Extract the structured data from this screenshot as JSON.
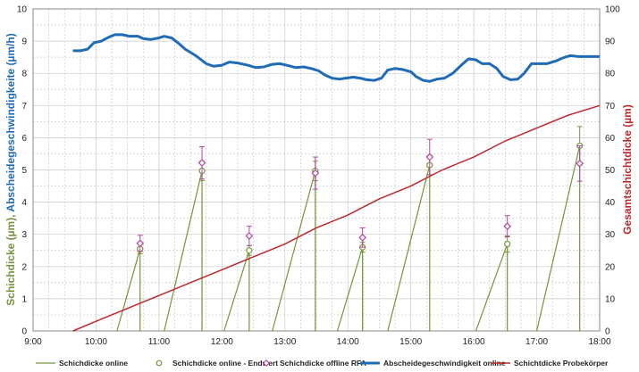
{
  "chart_data": {
    "type": "line",
    "x_range": [
      "9:00",
      "18:00"
    ],
    "x_ticks": [
      "9:00",
      "10:00",
      "11:00",
      "12:00",
      "13:00",
      "14:00",
      "15:00",
      "16:00",
      "17:00",
      "18:00"
    ],
    "y_left": {
      "label_part1": "Schichdicke (µm), ",
      "label_part2": "Abscheidegeschwindigkeite (µm/h)",
      "range": [
        0,
        10
      ],
      "ticks": [
        "0",
        "1",
        "2",
        "3",
        "4",
        "5",
        "6",
        "7",
        "8",
        "9",
        "10"
      ]
    },
    "y_right": {
      "label": "Gesamtschichtdicke (µm)",
      "range": [
        0,
        100
      ],
      "ticks": [
        "0",
        "10",
        "20",
        "30",
        "40",
        "50",
        "60",
        "70",
        "80",
        "90",
        "100"
      ]
    },
    "grid": true,
    "legend_position": "bottom",
    "colors": {
      "online": "#77933c",
      "endwert": "#77933c",
      "rfa": "#b4459e",
      "rate": "#1f6bb5",
      "probe": "#c0282d",
      "grid": "#c8c8c8",
      "left_title_part1": "#77933c",
      "left_title_part2": "#1f6bb5",
      "right_title": "#c0282d"
    },
    "series": [
      {
        "name": "Schichdicke online",
        "kind": "line",
        "color_key": "online",
        "segments": [
          [
            [
              "10:20",
              0
            ],
            [
              "10:42",
              2.55
            ],
            [
              "10:42",
              0
            ]
          ],
          [
            [
              "11:05",
              0
            ],
            [
              "11:41",
              4.97
            ],
            [
              "11:41",
              0
            ]
          ],
          [
            [
              "12:02",
              0
            ],
            [
              "12:26",
              2.5
            ],
            [
              "12:26",
              0
            ]
          ],
          [
            [
              "12:48",
              0
            ],
            [
              "13:29",
              4.97
            ],
            [
              "13:29",
              0
            ]
          ],
          [
            [
              "13:50",
              0
            ],
            [
              "14:14",
              2.6
            ],
            [
              "14:14",
              0
            ]
          ],
          [
            [
              "14:38",
              0
            ],
            [
              "15:18",
              5.15
            ],
            [
              "15:18",
              0
            ]
          ],
          [
            [
              "16:02",
              0
            ],
            [
              "16:32",
              2.7
            ],
            [
              "16:32",
              0
            ]
          ],
          [
            [
              "17:00",
              0
            ],
            [
              "17:41",
              5.75
            ],
            [
              "17:41",
              0
            ]
          ]
        ]
      },
      {
        "name": "Schichdicke online - Endwert",
        "kind": "marker-circle",
        "color_key": "endwert",
        "points": [
          {
            "t": "10:42",
            "y": 2.55,
            "err": 0.15
          },
          {
            "t": "11:41",
            "y": 4.97,
            "err": 0.3
          },
          {
            "t": "12:26",
            "y": 2.5,
            "err": 0.15
          },
          {
            "t": "13:29",
            "y": 4.97,
            "err": 0.3
          },
          {
            "t": "14:14",
            "y": 2.6,
            "err": 0.15
          },
          {
            "t": "15:18",
            "y": 5.15,
            "err": 0.3
          },
          {
            "t": "16:32",
            "y": 2.7,
            "err": 0.25
          },
          {
            "t": "17:41",
            "y": 5.75,
            "err": 0.6
          }
        ]
      },
      {
        "name": "Schichdicke offline RFA",
        "kind": "marker-diamond",
        "color_key": "rfa",
        "points": [
          {
            "t": "10:42",
            "y": 2.72,
            "err": 0.25
          },
          {
            "t": "11:41",
            "y": 5.22,
            "err": 0.5
          },
          {
            "t": "12:26",
            "y": 2.95,
            "err": 0.3
          },
          {
            "t": "13:29",
            "y": 4.9,
            "err": 0.5
          },
          {
            "t": "14:14",
            "y": 2.9,
            "err": 0.3
          },
          {
            "t": "15:18",
            "y": 5.4,
            "err": 0.55
          },
          {
            "t": "16:32",
            "y": 3.25,
            "err": 0.33
          },
          {
            "t": "17:41",
            "y": 5.2,
            "err": 0.55
          }
        ]
      },
      {
        "name": "Abscheidegeschwindigkeit online",
        "kind": "line",
        "axis": "left",
        "color_key": "rate",
        "points": [
          [
            "9:38",
            8.7
          ],
          [
            "9:45",
            8.7
          ],
          [
            "9:52",
            8.75
          ],
          [
            "9:58",
            8.95
          ],
          [
            "10:05",
            9.0
          ],
          [
            "10:12",
            9.12
          ],
          [
            "10:18",
            9.2
          ],
          [
            "10:25",
            9.2
          ],
          [
            "10:32",
            9.15
          ],
          [
            "10:40",
            9.15
          ],
          [
            "10:45",
            9.08
          ],
          [
            "10:52",
            9.05
          ],
          [
            "11:00",
            9.1
          ],
          [
            "11:05",
            9.15
          ],
          [
            "11:12",
            9.1
          ],
          [
            "11:18",
            8.95
          ],
          [
            "11:25",
            8.75
          ],
          [
            "11:35",
            8.55
          ],
          [
            "11:45",
            8.3
          ],
          [
            "11:52",
            8.22
          ],
          [
            "12:00",
            8.25
          ],
          [
            "12:07",
            8.35
          ],
          [
            "12:15",
            8.32
          ],
          [
            "12:25",
            8.25
          ],
          [
            "12:32",
            8.18
          ],
          [
            "12:40",
            8.2
          ],
          [
            "12:48",
            8.28
          ],
          [
            "12:55",
            8.3
          ],
          [
            "13:02",
            8.25
          ],
          [
            "13:10",
            8.18
          ],
          [
            "13:18",
            8.2
          ],
          [
            "13:25",
            8.15
          ],
          [
            "13:32",
            8.08
          ],
          [
            "13:38",
            7.95
          ],
          [
            "13:45",
            7.85
          ],
          [
            "13:52",
            7.82
          ],
          [
            "13:58",
            7.85
          ],
          [
            "14:05",
            7.88
          ],
          [
            "14:12",
            7.85
          ],
          [
            "14:18",
            7.8
          ],
          [
            "14:25",
            7.78
          ],
          [
            "14:32",
            7.85
          ],
          [
            "14:38",
            8.1
          ],
          [
            "14:45",
            8.15
          ],
          [
            "14:52",
            8.12
          ],
          [
            "15:00",
            8.05
          ],
          [
            "15:05",
            7.9
          ],
          [
            "15:12",
            7.78
          ],
          [
            "15:18",
            7.75
          ],
          [
            "15:25",
            7.82
          ],
          [
            "15:32",
            7.85
          ],
          [
            "15:40",
            8.0
          ],
          [
            "15:48",
            8.25
          ],
          [
            "15:55",
            8.45
          ],
          [
            "16:02",
            8.42
          ],
          [
            "16:08",
            8.3
          ],
          [
            "16:15",
            8.3
          ],
          [
            "16:22",
            8.15
          ],
          [
            "16:28",
            7.9
          ],
          [
            "16:35",
            7.8
          ],
          [
            "16:42",
            7.82
          ],
          [
            "16:48",
            8.0
          ],
          [
            "16:55",
            8.3
          ],
          [
            "17:02",
            8.3
          ],
          [
            "17:10",
            8.3
          ],
          [
            "17:18",
            8.38
          ],
          [
            "17:25",
            8.48
          ],
          [
            "17:32",
            8.55
          ],
          [
            "17:40",
            8.52
          ],
          [
            "17:50",
            8.52
          ],
          [
            "18:00",
            8.52
          ]
        ]
      },
      {
        "name": "Schichtdicke Probekörper",
        "kind": "line",
        "axis": "right",
        "color_key": "probe",
        "points": [
          [
            "9:38",
            0
          ],
          [
            "10:00",
            3
          ],
          [
            "10:30",
            7
          ],
          [
            "11:00",
            11
          ],
          [
            "11:30",
            15
          ],
          [
            "12:00",
            19
          ],
          [
            "12:30",
            23
          ],
          [
            "13:00",
            27
          ],
          [
            "13:30",
            32
          ],
          [
            "14:00",
            36
          ],
          [
            "14:30",
            41
          ],
          [
            "15:00",
            45
          ],
          [
            "15:30",
            50
          ],
          [
            "16:00",
            54
          ],
          [
            "16:30",
            59
          ],
          [
            "17:00",
            63
          ],
          [
            "17:30",
            67
          ],
          [
            "18:00",
            70
          ]
        ]
      }
    ]
  }
}
